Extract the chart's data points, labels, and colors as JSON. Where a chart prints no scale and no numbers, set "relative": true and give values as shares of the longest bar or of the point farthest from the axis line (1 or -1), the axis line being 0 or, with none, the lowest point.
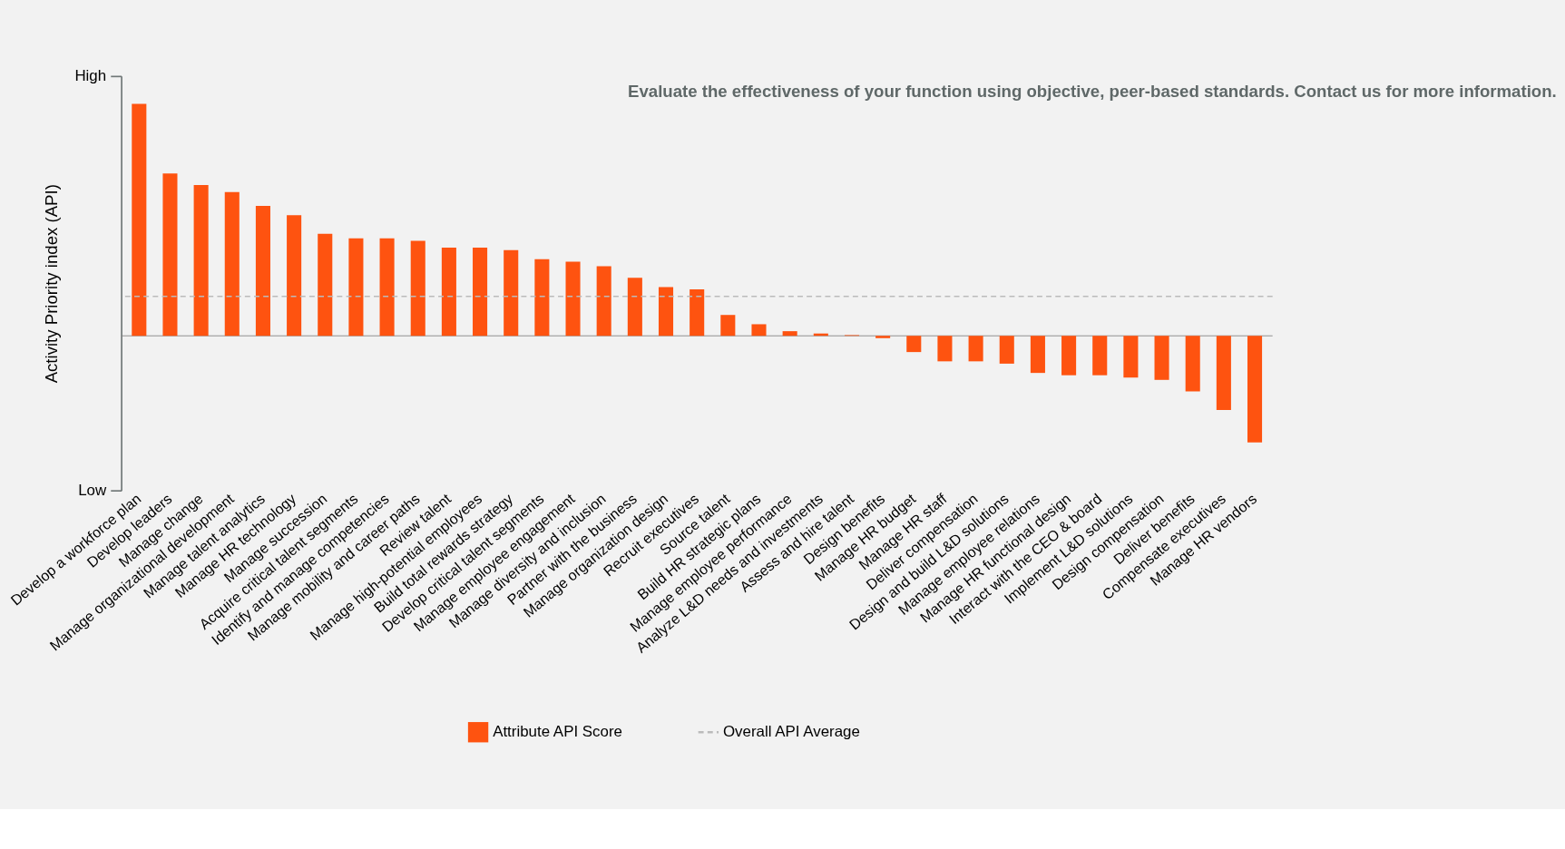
{
  "chart_data": {
    "type": "bar",
    "relative": true,
    "ylabel": "Activity Priority index (API)",
    "categories": [
      "Develop a workforce plan",
      "Develop leaders",
      "Manage change",
      "Manage organizational development",
      "Manage talent analytics",
      "Manage HR technology",
      "Manage succession",
      "Acquire critical talent segments",
      "Identify and manage competencies",
      "Manage mobility and career paths",
      "Review talent",
      "Manage high-potential employees",
      "Build total rewards strategy",
      "Develop critical talent segments",
      "Manage employee engagement",
      "Manage diversity and inclusion",
      "Partner with the business",
      "Manage organization design",
      "Recruit executives",
      "Source talent",
      "Build HR strategic plans",
      "Manage employee performance",
      "Analyze L&D needs and investments",
      "Assess and hire talent",
      "Design benefits",
      "Manage HR budget",
      "Manage HR staff",
      "Deliver compensation",
      "Design and build L&D solutions",
      "Manage employee relations",
      "Manage HR functional design",
      "Interact with the CEO & board",
      "Implement L&D solutions",
      "Design compensation",
      "Deliver benefits",
      "Compensate executives",
      "Manage HR vendors"
    ],
    "series": [
      {
        "name": "Attribute API Score",
        "color": "#fe5310",
        "values": [
          1,
          0.7,
          0.65,
          0.62,
          0.56,
          0.52,
          0.44,
          0.42,
          0.42,
          0.41,
          0.38,
          0.38,
          0.37,
          0.33,
          0.32,
          0.3,
          0.25,
          0.21,
          0.2,
          0.09,
          0.05,
          0.02,
          0.01,
          0.003,
          -0.01,
          -0.07,
          -0.11,
          -0.11,
          -0.12,
          -0.16,
          -0.17,
          -0.17,
          -0.18,
          -0.19,
          -0.24,
          -0.32,
          -0.46
        ]
      }
    ],
    "ref_lines": [
      {
        "axis": "y",
        "value": 0.17,
        "label": "Overall API Average",
        "color": "#bbbbbb",
        "line_style": "dashed"
      }
    ],
    "annotations": [
      "High",
      "Low",
      "Evaluate the effectiveness of your function using objective, peer-based standards. Contact us for more information."
    ],
    "legend": "bottom",
    "grid": false
  }
}
